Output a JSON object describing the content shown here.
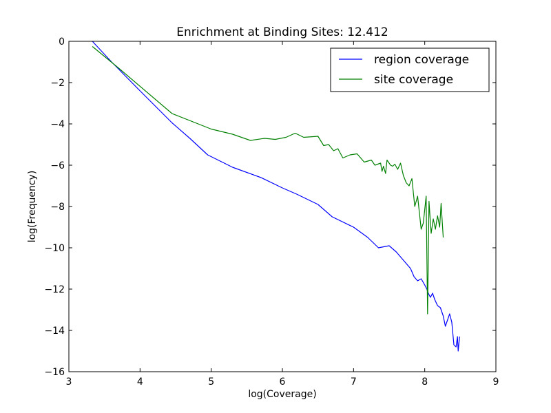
{
  "chart_data": {
    "type": "line",
    "title": "Enrichment at Binding Sites: 12.412",
    "xlabel": "log(Coverage)",
    "ylabel": "log(Frequency)",
    "xlim": [
      3,
      9
    ],
    "ylim": [
      -16,
      0
    ],
    "xticks": [
      3,
      4,
      5,
      6,
      7,
      8,
      9
    ],
    "yticks": [
      0,
      -2,
      -4,
      -6,
      -8,
      -10,
      -12,
      -14,
      -16
    ],
    "grid": false,
    "legend_position": "top-right",
    "series": [
      {
        "name": "region coverage",
        "color": "#0000ff",
        "points": [
          [
            3.33,
            0.0
          ],
          [
            3.6,
            -1.0
          ],
          [
            4.0,
            -2.4
          ],
          [
            4.45,
            -3.95
          ],
          [
            4.7,
            -4.7
          ],
          [
            4.95,
            -5.5
          ],
          [
            5.3,
            -6.1
          ],
          [
            5.7,
            -6.6
          ],
          [
            6.0,
            -7.1
          ],
          [
            6.2,
            -7.4
          ],
          [
            6.5,
            -7.9
          ],
          [
            6.7,
            -8.5
          ],
          [
            7.0,
            -9.0
          ],
          [
            7.2,
            -9.5
          ],
          [
            7.35,
            -10.0
          ],
          [
            7.5,
            -9.9
          ],
          [
            7.6,
            -10.2
          ],
          [
            7.7,
            -10.6
          ],
          [
            7.8,
            -11.0
          ],
          [
            7.85,
            -11.4
          ],
          [
            7.9,
            -11.6
          ],
          [
            7.95,
            -11.5
          ],
          [
            8.0,
            -11.8
          ],
          [
            8.03,
            -12.0
          ],
          [
            8.05,
            -12.2
          ],
          [
            8.08,
            -12.4
          ],
          [
            8.11,
            -12.2
          ],
          [
            8.14,
            -12.5
          ],
          [
            8.18,
            -12.8
          ],
          [
            8.22,
            -12.9
          ],
          [
            8.26,
            -13.3
          ],
          [
            8.29,
            -13.8
          ],
          [
            8.32,
            -13.5
          ],
          [
            8.35,
            -13.2
          ],
          [
            8.38,
            -13.6
          ],
          [
            8.41,
            -14.7
          ],
          [
            8.44,
            -14.8
          ],
          [
            8.46,
            -14.3
          ],
          [
            8.47,
            -15.0
          ],
          [
            8.49,
            -14.3
          ]
        ]
      },
      {
        "name": "site coverage",
        "color": "#008000",
        "points": [
          [
            3.33,
            -0.25
          ],
          [
            3.7,
            -1.3
          ],
          [
            4.45,
            -3.5
          ],
          [
            5.0,
            -4.25
          ],
          [
            5.3,
            -4.5
          ],
          [
            5.55,
            -4.8
          ],
          [
            5.75,
            -4.7
          ],
          [
            5.9,
            -4.75
          ],
          [
            6.05,
            -4.65
          ],
          [
            6.18,
            -4.45
          ],
          [
            6.3,
            -4.65
          ],
          [
            6.5,
            -4.6
          ],
          [
            6.58,
            -5.05
          ],
          [
            6.65,
            -5.0
          ],
          [
            6.72,
            -5.3
          ],
          [
            6.78,
            -5.2
          ],
          [
            6.85,
            -5.65
          ],
          [
            6.95,
            -5.5
          ],
          [
            7.05,
            -5.45
          ],
          [
            7.15,
            -5.85
          ],
          [
            7.25,
            -5.75
          ],
          [
            7.3,
            -6.0
          ],
          [
            7.38,
            -5.9
          ],
          [
            7.4,
            -6.3
          ],
          [
            7.42,
            -6.05
          ],
          [
            7.45,
            -6.4
          ],
          [
            7.47,
            -5.75
          ],
          [
            7.52,
            -6.0
          ],
          [
            7.55,
            -6.05
          ],
          [
            7.58,
            -5.95
          ],
          [
            7.62,
            -6.2
          ],
          [
            7.66,
            -5.9
          ],
          [
            7.7,
            -6.5
          ],
          [
            7.74,
            -6.85
          ],
          [
            7.78,
            -7.0
          ],
          [
            7.82,
            -6.65
          ],
          [
            7.86,
            -8.0
          ],
          [
            7.9,
            -7.5
          ],
          [
            7.95,
            -9.1
          ],
          [
            7.98,
            -8.8
          ],
          [
            8.02,
            -7.5
          ],
          [
            8.04,
            -13.2
          ],
          [
            8.06,
            -7.75
          ],
          [
            8.09,
            -9.3
          ],
          [
            8.12,
            -8.6
          ],
          [
            8.15,
            -9.1
          ],
          [
            8.18,
            -8.45
          ],
          [
            8.21,
            -9.0
          ],
          [
            8.23,
            -7.85
          ],
          [
            8.26,
            -9.5
          ]
        ]
      }
    ]
  }
}
